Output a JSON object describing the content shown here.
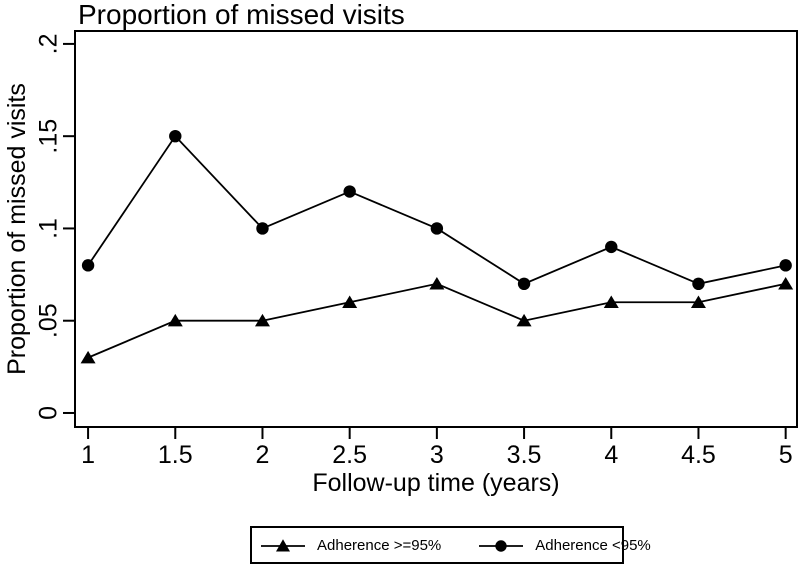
{
  "chart_data": {
    "type": "line",
    "title": "Proportion of missed visits",
    "xlabel": "Follow-up time (years)",
    "ylabel": "Proportion of missed visits",
    "x": [
      1,
      1.5,
      2,
      2.5,
      3,
      3.5,
      4,
      4.5,
      5
    ],
    "series": [
      {
        "name": "Adherence >=95%",
        "marker": "triangle",
        "values": [
          0.03,
          0.05,
          0.05,
          0.06,
          0.07,
          0.05,
          0.06,
          0.06,
          0.07
        ]
      },
      {
        "name": "Adherence <95%",
        "marker": "circle",
        "values": [
          0.08,
          0.15,
          0.1,
          0.12,
          0.1,
          0.07,
          0.09,
          0.07,
          0.08
        ]
      }
    ],
    "xticks": [
      1,
      1.5,
      2,
      2.5,
      3,
      3.5,
      4,
      4.5,
      5
    ],
    "xtick_labels": [
      "1",
      "1.5",
      "2",
      "2.5",
      "3",
      "3.5",
      "4",
      "4.5",
      "5"
    ],
    "yticks": [
      0,
      0.05,
      0.1,
      0.15,
      0.2
    ],
    "ytick_labels": [
      "0",
      ".05",
      ".1",
      ".15",
      ".2"
    ],
    "xlim": [
      0.925,
      5.065
    ],
    "ylim": [
      -0.0076,
      0.207
    ],
    "grid": false,
    "legend_position": "bottom-center",
    "colors": {
      "foreground": "#000000",
      "background": "#ffffff"
    }
  }
}
